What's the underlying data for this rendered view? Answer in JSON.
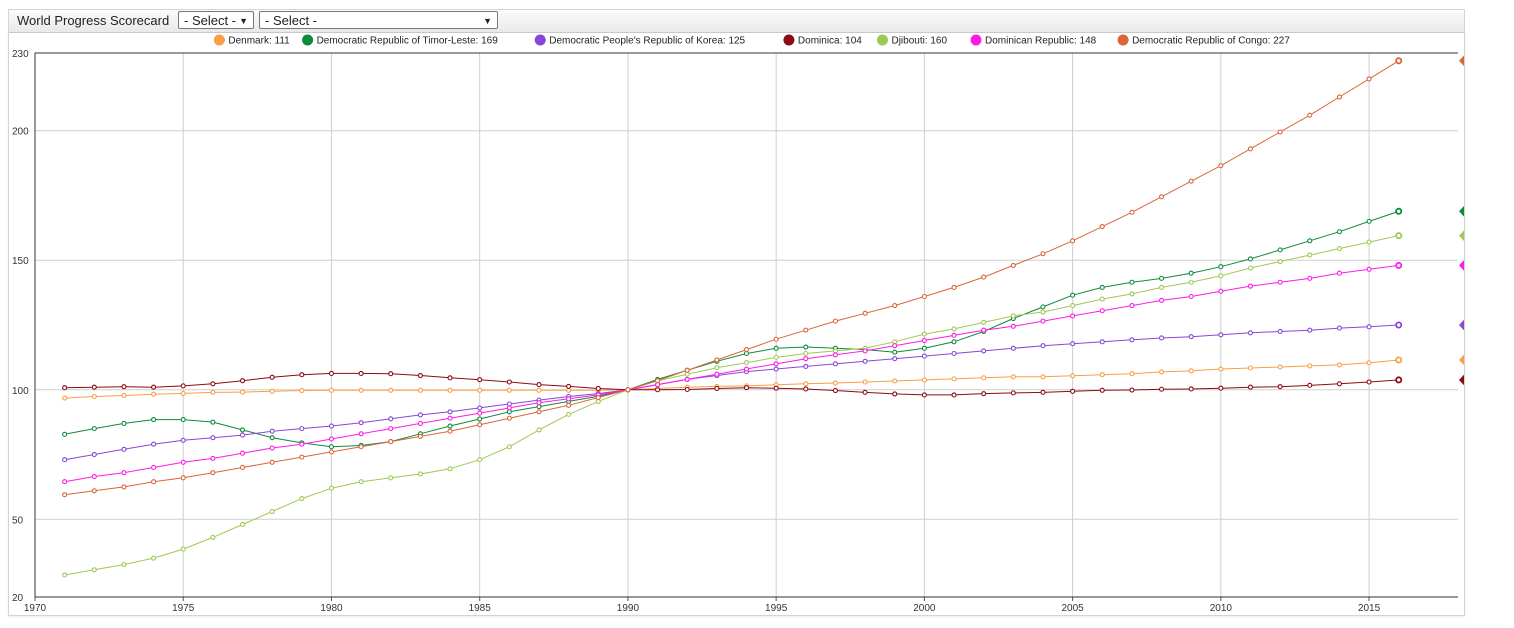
{
  "header": {
    "title": "World Progress Scorecard",
    "select_1": "- Select -",
    "select_2": "- Select -"
  },
  "chart_data": {
    "type": "line",
    "title": "",
    "xlabel": "",
    "ylabel": "",
    "xlim": [
      1970,
      2018
    ],
    "ylim": [
      20,
      230
    ],
    "xticks": [
      1970,
      1975,
      1980,
      1985,
      1990,
      1995,
      2000,
      2005,
      2010,
      2015
    ],
    "yticks": [
      20,
      50,
      100,
      150,
      200,
      230
    ],
    "grid": true,
    "legend_position": "top",
    "x": [
      1971,
      1972,
      1973,
      1974,
      1975,
      1976,
      1977,
      1978,
      1979,
      1980,
      1981,
      1982,
      1983,
      1984,
      1985,
      1986,
      1987,
      1988,
      1989,
      1990,
      1991,
      1992,
      1993,
      1994,
      1995,
      1996,
      1997,
      1998,
      1999,
      2000,
      2001,
      2002,
      2003,
      2004,
      2005,
      2006,
      2007,
      2008,
      2009,
      2010,
      2011,
      2012,
      2013,
      2014,
      2015,
      2016
    ],
    "series": [
      {
        "name": "Denmark",
        "label": "Denmark: 111",
        "tag": "111",
        "color": "#f7a045",
        "values": [
          96.8,
          97.4,
          97.8,
          98.3,
          98.6,
          99.0,
          99.1,
          99.4,
          99.7,
          99.8,
          99.8,
          99.8,
          99.8,
          99.8,
          99.8,
          99.8,
          99.8,
          99.8,
          99.8,
          100,
          100.5,
          101.0,
          101.3,
          101.5,
          101.9,
          102.3,
          102.6,
          103.0,
          103.4,
          103.8,
          104.2,
          104.6,
          105.0,
          105.0,
          105.4,
          105.8,
          106.2,
          106.9,
          107.3,
          108.0,
          108.4,
          108.8,
          109.2,
          109.6,
          110.4,
          111.5
        ]
      },
      {
        "name": "Democratic Republic of Timor-Leste",
        "label": "Democratic Republic of Timor-Leste: 169",
        "tag": "169",
        "color": "#0f8a3c",
        "values": [
          82.8,
          85.0,
          87.0,
          88.5,
          88.5,
          87.5,
          84.5,
          81.5,
          79.5,
          78.0,
          78.5,
          80.0,
          83.0,
          86.0,
          88.7,
          91.5,
          93.5,
          95.5,
          97.5,
          100,
          104.0,
          107.5,
          111.0,
          114.0,
          116.0,
          116.5,
          116.0,
          115.5,
          114.5,
          116.0,
          118.5,
          122.5,
          127.5,
          132.0,
          136.5,
          139.5,
          141.5,
          143.0,
          145.0,
          147.5,
          150.5,
          154.0,
          157.5,
          161.0,
          165.0,
          168.9
        ]
      },
      {
        "name": "Democratic People's Republic of Korea",
        "label": "Democratic People's Republic of Korea: 125",
        "tag": "125",
        "color": "#8a45d8",
        "values": [
          73.0,
          75.0,
          77.0,
          79.0,
          80.5,
          81.5,
          82.5,
          84.0,
          85.0,
          86.0,
          87.3,
          88.8,
          90.3,
          91.5,
          93.0,
          94.5,
          96.0,
          97.4,
          98.5,
          100,
          102.0,
          104.0,
          105.5,
          107.0,
          108.0,
          109.0,
          110.0,
          111.0,
          112.0,
          113.0,
          114.0,
          115.0,
          116.0,
          117.0,
          117.8,
          118.5,
          119.3,
          120.0,
          120.5,
          121.2,
          122.0,
          122.5,
          123.0,
          123.8,
          124.3,
          125.0
        ]
      },
      {
        "name": "Dominica",
        "label": "Dominica: 104",
        "tag": "104",
        "color": "#8b0a13",
        "values": [
          100.8,
          101.0,
          101.2,
          101.0,
          101.5,
          102.3,
          103.5,
          104.8,
          105.8,
          106.3,
          106.3,
          106.2,
          105.5,
          104.6,
          103.9,
          103.0,
          102.0,
          101.3,
          100.5,
          100,
          100.0,
          100.1,
          100.5,
          100.8,
          100.6,
          100.3,
          99.7,
          99.0,
          98.4,
          98.0,
          98.0,
          98.5,
          98.8,
          99.0,
          99.4,
          99.8,
          99.9,
          100.2,
          100.3,
          100.6,
          101.0,
          101.2,
          101.7,
          102.3,
          103.0,
          103.8
        ]
      },
      {
        "name": "Djibouti",
        "label": "Djibouti: 160",
        "tag": "160",
        "color": "#9fc955",
        "values": [
          28.5,
          30.5,
          32.5,
          35.0,
          38.5,
          43.0,
          48.0,
          53.0,
          58.0,
          62.0,
          64.5,
          66.0,
          67.5,
          69.5,
          73.0,
          78.0,
          84.5,
          90.5,
          95.5,
          100,
          103.5,
          106.0,
          108.5,
          110.5,
          112.5,
          114.0,
          115.0,
          116.0,
          118.5,
          121.5,
          123.5,
          126.0,
          128.5,
          130.0,
          132.5,
          135.0,
          137.0,
          139.5,
          141.5,
          144.0,
          147.0,
          149.5,
          152.0,
          154.5,
          157.0,
          159.5
        ]
      },
      {
        "name": "Dominican Republic",
        "label": "Dominican Republic: 148",
        "tag": "148",
        "color": "#ff1ae8",
        "values": [
          64.5,
          66.5,
          68.0,
          70.0,
          72.0,
          73.5,
          75.5,
          77.5,
          79.0,
          81.0,
          83.0,
          85.0,
          87.0,
          89.0,
          91.0,
          93.0,
          95.0,
          96.5,
          98.0,
          100,
          102.0,
          104.0,
          106.0,
          108.0,
          110.0,
          112.0,
          113.5,
          115.0,
          117.0,
          119.0,
          121.0,
          123.0,
          124.5,
          126.5,
          128.5,
          130.5,
          132.5,
          134.5,
          136.0,
          138.0,
          140.0,
          141.5,
          143.0,
          145.0,
          146.5,
          148.0
        ]
      },
      {
        "name": "Democratic Republic of Congo",
        "label": "Democratic Republic of Congo: 227",
        "tag": "227",
        "color": "#dc6537",
        "values": [
          59.5,
          61.0,
          62.5,
          64.5,
          66.0,
          68.0,
          70.0,
          72.0,
          74.0,
          76.0,
          78.0,
          80.0,
          82.0,
          84.0,
          86.5,
          89.0,
          91.5,
          94.0,
          97.0,
          100,
          103.5,
          107.5,
          111.5,
          115.5,
          119.5,
          123.0,
          126.5,
          129.5,
          132.5,
          136.0,
          139.5,
          143.5,
          148.0,
          152.5,
          157.5,
          163.0,
          168.5,
          174.5,
          180.5,
          186.5,
          193.0,
          199.5,
          206.0,
          213.0,
          220.0,
          227.0
        ]
      }
    ]
  }
}
